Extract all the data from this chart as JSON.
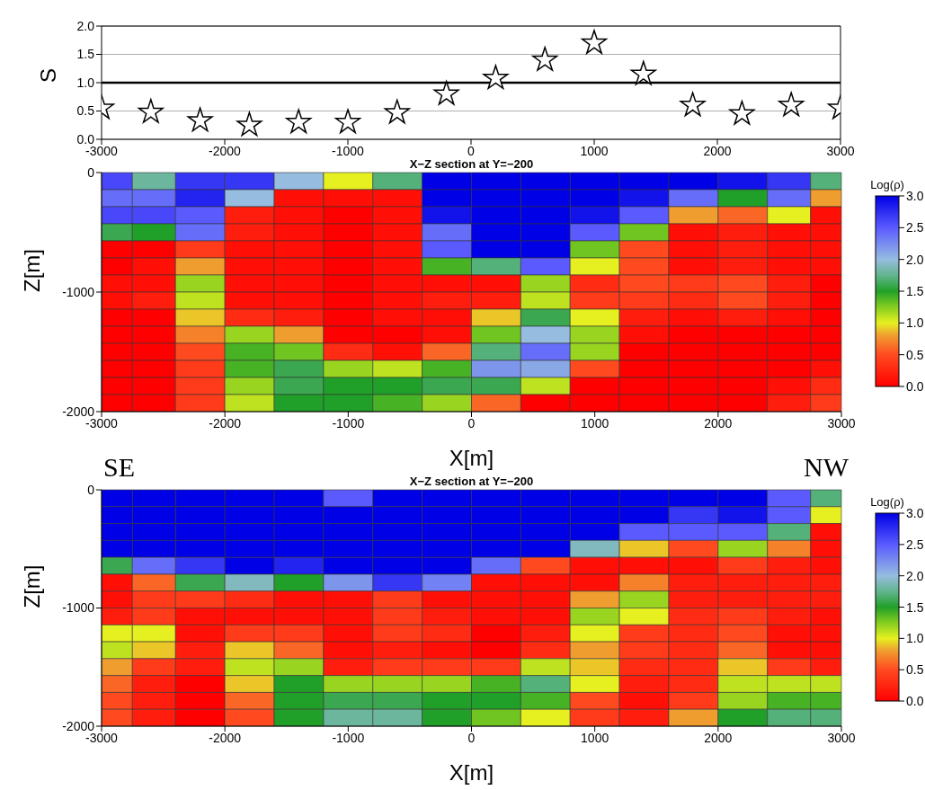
{
  "chart_data": [
    {
      "type": "scatter",
      "ylabel": "S",
      "x": [
        -3000,
        -2600,
        -2200,
        -1800,
        -1400,
        -1000,
        -600,
        -200,
        200,
        600,
        1000,
        1400,
        1800,
        2200,
        2600,
        3000
      ],
      "values": [
        0.55,
        0.48,
        0.33,
        0.25,
        0.3,
        0.3,
        0.47,
        0.8,
        1.08,
        1.4,
        1.7,
        1.15,
        0.6,
        0.45,
        0.6,
        0.55
      ],
      "color": "#ffffff",
      "marker": "star",
      "xlim": [
        -3000,
        3000
      ],
      "xticks": [
        -3000,
        -2000,
        -1000,
        0,
        1000,
        2000,
        3000
      ],
      "ylim": [
        0,
        2
      ],
      "yticks": [
        {
          "value": 0,
          "label": "0.0"
        },
        {
          "value": 0.5,
          "label": "0.5"
        },
        {
          "value": 1,
          "label": "1.0"
        },
        {
          "value": 1.5,
          "label": "1.5"
        },
        {
          "value": 2,
          "label": "2.0"
        }
      ],
      "grid": "y",
      "ref_lines": [
        {
          "axis": "y",
          "value": 1,
          "color": "#000000"
        }
      ]
    },
    {
      "type": "heatmap",
      "title": "X−Z section at Y=−200",
      "xlabel": "X[m]",
      "ylabel": "Z[m]",
      "clabel": "Log(ρ)",
      "x": [
        -2900,
        -2600,
        -2200,
        -1800,
        -1400,
        -1000,
        -600,
        -200,
        200,
        600,
        1000,
        1400,
        1800,
        2200,
        2600,
        2900
      ],
      "xlim": [
        -3000,
        3000
      ],
      "xticks": [
        -3000,
        -2000,
        -1000,
        0,
        1000,
        2000,
        3000
      ],
      "ylim": [
        -2000,
        0
      ],
      "yticks": [
        -2000,
        -1000,
        0
      ],
      "clim": [
        0,
        3
      ],
      "cticks": [
        {
          "value": 0,
          "label": "0.0"
        },
        {
          "value": 0.5,
          "label": "0.5"
        },
        {
          "value": 1,
          "label": "1.0"
        },
        {
          "value": 1.5,
          "label": "1.5"
        },
        {
          "value": 2,
          "label": "2.0"
        },
        {
          "value": 2.5,
          "label": "2.5"
        },
        {
          "value": 3,
          "label": "3.0"
        }
      ],
      "cells": [
        [
          2.6,
          1.8,
          2.7,
          2.7,
          2.0,
          1.0,
          1.7,
          3.0,
          3.0,
          3.0,
          3.0,
          3.0,
          3.0,
          2.9,
          2.7,
          1.7
        ],
        [
          2.4,
          2.4,
          2.8,
          2.0,
          0.1,
          0.1,
          0.1,
          3.0,
          3.0,
          3.0,
          3.0,
          2.9,
          2.4,
          1.5,
          2.4,
          0.8
        ],
        [
          2.6,
          2.6,
          2.5,
          0.2,
          0.1,
          0,
          0.1,
          2.9,
          3.0,
          3.0,
          2.9,
          2.5,
          0.8,
          0.6,
          1.0,
          0.1
        ],
        [
          1.6,
          1.5,
          2.4,
          0.2,
          0.1,
          0,
          0.1,
          2.4,
          3.0,
          3.0,
          2.5,
          1.3,
          0.1,
          0.2,
          0.1,
          0.1
        ],
        [
          0,
          0,
          0.4,
          0.1,
          0.1,
          0,
          0.1,
          2.5,
          3.0,
          3.0,
          1.3,
          0.5,
          0.1,
          0.2,
          0.1,
          0.1
        ],
        [
          0,
          0.1,
          0.8,
          0.1,
          0.1,
          0,
          0.1,
          1.4,
          1.7,
          2.5,
          1.0,
          0.5,
          0.1,
          0.2,
          0.1,
          0.1
        ],
        [
          0.1,
          0.1,
          1.2,
          0.1,
          0.1,
          0,
          0.1,
          0.1,
          0.1,
          1.2,
          0.3,
          0.5,
          0.4,
          0.5,
          0.2,
          0
        ],
        [
          0.1,
          0.2,
          1.1,
          0.1,
          0.1,
          0,
          0.1,
          0.2,
          0.2,
          1.1,
          0.4,
          0.4,
          0.3,
          0.5,
          0.2,
          0
        ],
        [
          0,
          0,
          0.9,
          0.3,
          0.2,
          0,
          0.1,
          0.1,
          0.9,
          1.6,
          1.0,
          0.2,
          0.1,
          0.2,
          0.1,
          0
        ],
        [
          0,
          0,
          0.7,
          1.2,
          0.8,
          0,
          0,
          0.1,
          1.3,
          2.0,
          1.2,
          0.1,
          0,
          0,
          0,
          0
        ],
        [
          0,
          0,
          0.5,
          1.4,
          1.3,
          0.3,
          0.1,
          0.6,
          1.7,
          2.4,
          1.2,
          0,
          0,
          0,
          0,
          0
        ],
        [
          0,
          0,
          0.4,
          1.4,
          1.6,
          1.2,
          1.1,
          1.4,
          2.2,
          2.1,
          0.5,
          0,
          0,
          0,
          0,
          0.1
        ],
        [
          0,
          0,
          0.4,
          1.2,
          1.6,
          1.5,
          1.5,
          1.6,
          1.6,
          1.1,
          0,
          0,
          0,
          0,
          0.1,
          0.3
        ],
        [
          0,
          0,
          0.4,
          1.1,
          1.5,
          1.5,
          1.4,
          1.2,
          0.6,
          0,
          0,
          0,
          0,
          0,
          0.2,
          0.4
        ]
      ]
    },
    {
      "type": "heatmap",
      "title": "X−Z section at Y=−200",
      "xlabel": "X[m]",
      "ylabel": "Z[m]",
      "clabel": "Log(ρ)",
      "annotations": [
        "SE",
        "NW"
      ],
      "x": [
        -2900,
        -2600,
        -2200,
        -1800,
        -1400,
        -1000,
        -600,
        -200,
        200,
        600,
        1000,
        1400,
        1800,
        2200,
        2600,
        2900
      ],
      "xlim": [
        -3000,
        3000
      ],
      "xticks": [
        -3000,
        -2000,
        -1000,
        0,
        1000,
        2000,
        3000
      ],
      "ylim": [
        -2000,
        0
      ],
      "yticks": [
        -2000,
        -1000,
        0
      ],
      "clim": [
        0,
        3
      ],
      "cticks": [
        {
          "value": 0,
          "label": "0.0"
        },
        {
          "value": 0.5,
          "label": "0.5"
        },
        {
          "value": 1,
          "label": "1.0"
        },
        {
          "value": 1.5,
          "label": "1.5"
        },
        {
          "value": 2,
          "label": "2.0"
        },
        {
          "value": 2.5,
          "label": "2.5"
        },
        {
          "value": 3,
          "label": "3.0"
        }
      ],
      "cells": [
        [
          3,
          3,
          3,
          3,
          3,
          2.5,
          3,
          3,
          3,
          3,
          3,
          3,
          3,
          3,
          2.5,
          1.7
        ],
        [
          3,
          3,
          3,
          3,
          3,
          3,
          3,
          3,
          3,
          3,
          3,
          3,
          2.7,
          2.9,
          2.5,
          1.0
        ],
        [
          3,
          3,
          3,
          3,
          3,
          3,
          3,
          3,
          3,
          3,
          3,
          2.5,
          2.5,
          2.5,
          1.7,
          0.1
        ],
        [
          3,
          3,
          3,
          3,
          3,
          3,
          3,
          3,
          3,
          3,
          1.9,
          0.9,
          0.5,
          1.2,
          0.7,
          0.1
        ],
        [
          1.6,
          2.4,
          2.7,
          3,
          2.8,
          3,
          3,
          3,
          2.4,
          0.5,
          0.1,
          0.1,
          0.1,
          0.4,
          0.2,
          0.1
        ],
        [
          0.1,
          0.6,
          1.6,
          1.9,
          1.5,
          2.2,
          2.7,
          2.3,
          0.1,
          0.1,
          0.1,
          0.7,
          0.2,
          0.2,
          0.2,
          0.2
        ],
        [
          0.1,
          0.4,
          0.4,
          0.3,
          0.1,
          0.1,
          0.4,
          0.1,
          0.1,
          0.1,
          0.8,
          1.2,
          0.2,
          0.2,
          0.2,
          0.2
        ],
        [
          0.2,
          0.4,
          0.1,
          0.1,
          0.1,
          0.1,
          0.4,
          0.2,
          0.1,
          0.1,
          1.2,
          1.0,
          0.3,
          0.4,
          0.2,
          0.1
        ],
        [
          1.0,
          1.0,
          0.1,
          0.4,
          0.4,
          0.1,
          0.4,
          0.3,
          0,
          0.2,
          1.0,
          0.4,
          0.3,
          0.5,
          0.1,
          0.1
        ],
        [
          1.1,
          0.9,
          0.2,
          0.9,
          0.6,
          0.1,
          0.2,
          0.1,
          0,
          0.3,
          0.8,
          0.4,
          0.3,
          0.6,
          0.1,
          0.1
        ],
        [
          0.8,
          0.4,
          0.2,
          1.1,
          1.2,
          0.2,
          0.4,
          0.4,
          0.4,
          1.1,
          0.9,
          0.3,
          0.3,
          0.9,
          0.4,
          0.2
        ],
        [
          0.6,
          0.2,
          0,
          0.9,
          1.5,
          1.2,
          1.2,
          1.2,
          1.4,
          1.7,
          1.0,
          0.2,
          0.3,
          1.1,
          1.1,
          1.1
        ],
        [
          0.5,
          0.2,
          0,
          0.6,
          1.5,
          1.6,
          1.6,
          1.5,
          1.5,
          1.4,
          0.5,
          0.1,
          0.4,
          1.2,
          1.4,
          1.4
        ],
        [
          0.5,
          0.2,
          0,
          0.5,
          1.5,
          1.8,
          1.8,
          1.5,
          1.3,
          1.0,
          0.4,
          0.2,
          0.8,
          1.5,
          1.7,
          1.7
        ]
      ]
    }
  ]
}
